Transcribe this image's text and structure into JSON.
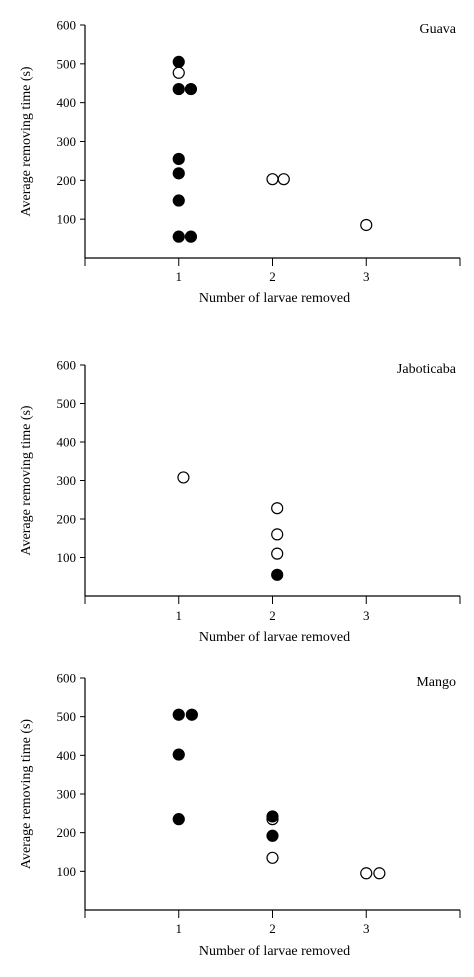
{
  "chart_data": [
    {
      "type": "scatter",
      "title": "Guava",
      "xlabel": "Number of larvae removed",
      "ylabel": "Average removing time (s)",
      "xticks": [
        "1",
        "2",
        "3"
      ],
      "yticks": [
        "100",
        "200",
        "300",
        "400",
        "500",
        "600"
      ],
      "xlim": [
        0,
        4
      ],
      "ylim": [
        0,
        600
      ],
      "filled": [
        {
          "x": 1.0,
          "y": 505
        },
        {
          "x": 1.0,
          "y": 435
        },
        {
          "x": 1.13,
          "y": 435
        },
        {
          "x": 1.0,
          "y": 255
        },
        {
          "x": 1.0,
          "y": 218
        },
        {
          "x": 1.0,
          "y": 148
        },
        {
          "x": 1.0,
          "y": 55
        },
        {
          "x": 1.13,
          "y": 55
        }
      ],
      "open": [
        {
          "x": 1.0,
          "y": 477
        },
        {
          "x": 2.0,
          "y": 203
        },
        {
          "x": 2.12,
          "y": 203
        },
        {
          "x": 3.0,
          "y": 85
        }
      ]
    },
    {
      "type": "scatter",
      "title": "Jaboticaba",
      "xlabel": "Number of larvae removed",
      "ylabel": "Average removing time (s)",
      "xticks": [
        "1",
        "2",
        "3"
      ],
      "yticks": [
        "100",
        "200",
        "300",
        "400",
        "500",
        "600"
      ],
      "xlim": [
        0,
        4
      ],
      "ylim": [
        0,
        600
      ],
      "filled": [
        {
          "x": 2.05,
          "y": 55
        }
      ],
      "open": [
        {
          "x": 1.05,
          "y": 308
        },
        {
          "x": 2.05,
          "y": 228
        },
        {
          "x": 2.05,
          "y": 160
        },
        {
          "x": 2.05,
          "y": 110
        }
      ]
    },
    {
      "type": "scatter",
      "title": "Mango",
      "xlabel": "Number of larvae removed",
      "ylabel": "Average removing time (s)",
      "xticks": [
        "1",
        "2",
        "3"
      ],
      "yticks": [
        "100",
        "200",
        "300",
        "400",
        "500",
        "600"
      ],
      "xlim": [
        0,
        4
      ],
      "ylim": [
        0,
        600
      ],
      "filled": [
        {
          "x": 1.0,
          "y": 505
        },
        {
          "x": 1.14,
          "y": 505
        },
        {
          "x": 1.0,
          "y": 402
        },
        {
          "x": 1.0,
          "y": 235
        },
        {
          "x": 2.0,
          "y": 242
        },
        {
          "x": 2.0,
          "y": 192
        }
      ],
      "open": [
        {
          "x": 2.0,
          "y": 235
        },
        {
          "x": 2.0,
          "y": 135
        },
        {
          "x": 3.0,
          "y": 95
        },
        {
          "x": 3.14,
          "y": 95
        }
      ]
    }
  ]
}
